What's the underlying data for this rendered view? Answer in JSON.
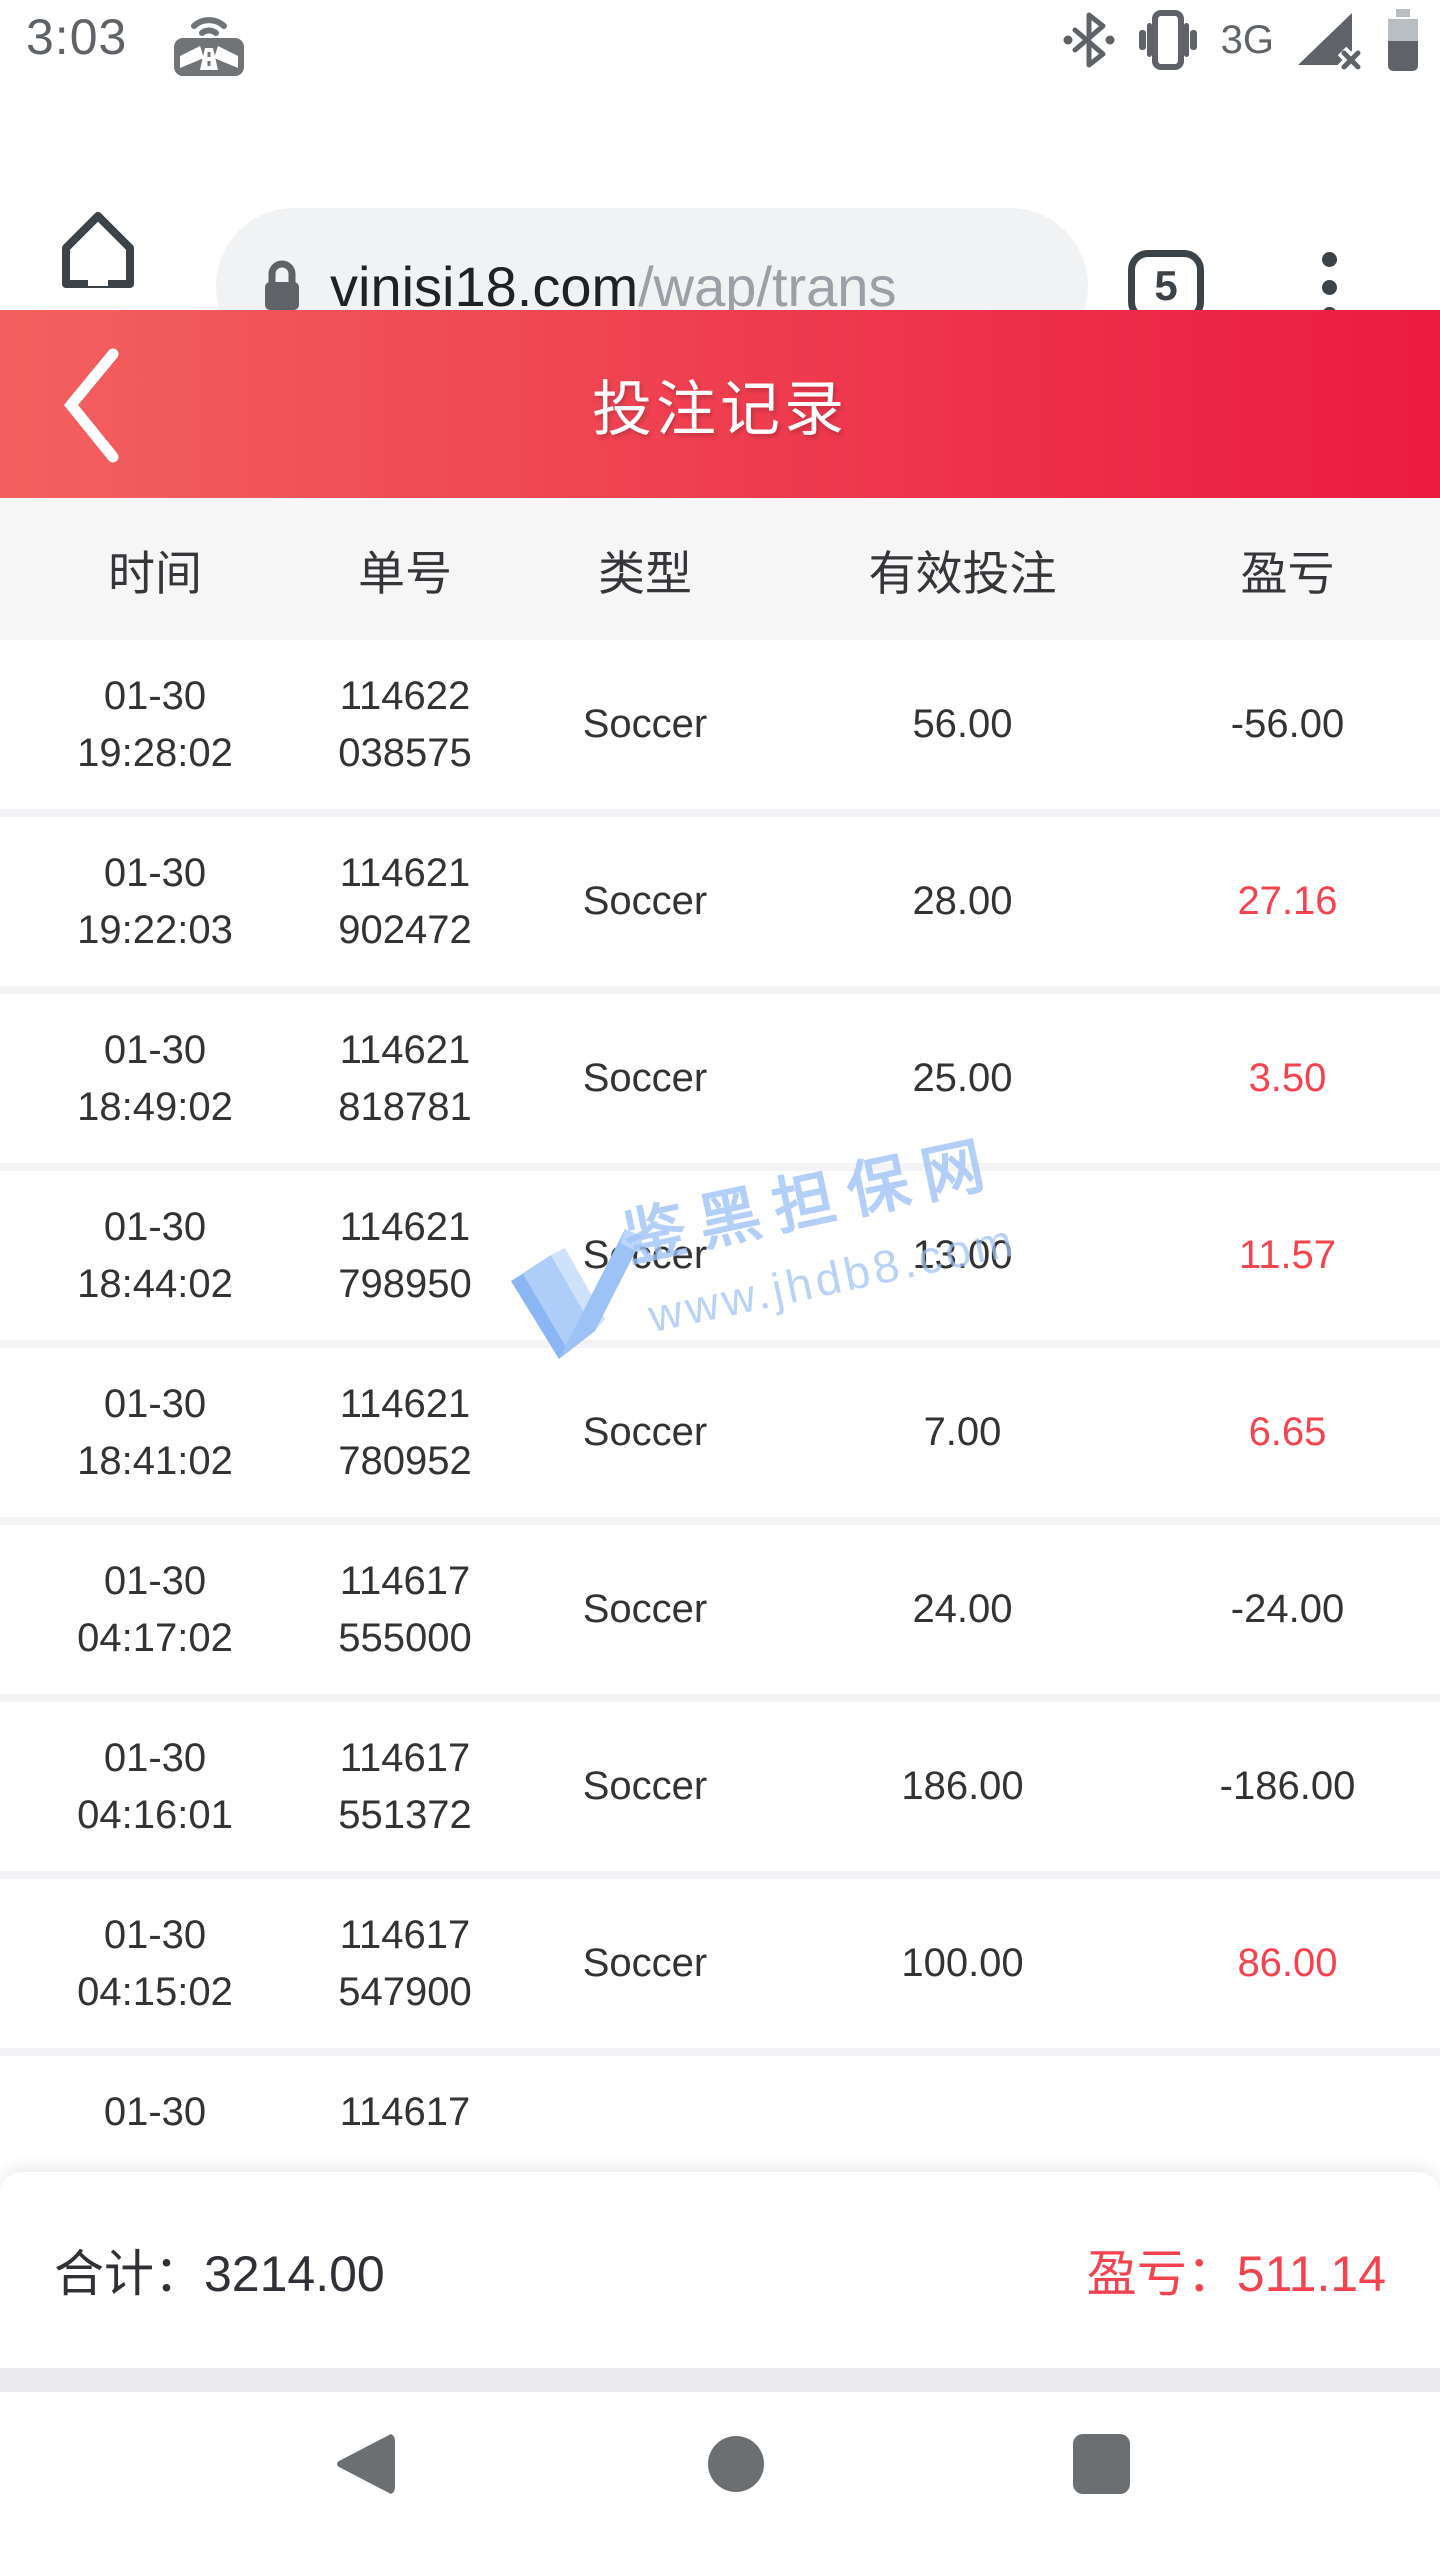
{
  "status_bar": {
    "time": "3:03",
    "network": "3G",
    "icons": [
      "cast-icon",
      "bluetooth-icon",
      "vibrate-icon",
      "signal-no-connection-icon",
      "battery-icon"
    ]
  },
  "browser_bar": {
    "url_domain": "vinisi18.com",
    "url_path": "/wap/trans",
    "tab_count": "5"
  },
  "page_header": {
    "title": "投注记录"
  },
  "bet_table": {
    "columns": [
      "时间",
      "单号",
      "类型",
      "有效投注",
      "盈亏"
    ],
    "rows": [
      {
        "date": "01-30",
        "time": "19:28:02",
        "order_hi": "114622",
        "order_lo": "038575",
        "type": "Soccer",
        "valid_bet": "56.00",
        "profit_loss": "-56.00",
        "profit_red": false
      },
      {
        "date": "01-30",
        "time": "19:22:03",
        "order_hi": "114621",
        "order_lo": "902472",
        "type": "Soccer",
        "valid_bet": "28.00",
        "profit_loss": "27.16",
        "profit_red": true
      },
      {
        "date": "01-30",
        "time": "18:49:02",
        "order_hi": "114621",
        "order_lo": "818781",
        "type": "Soccer",
        "valid_bet": "25.00",
        "profit_loss": "3.50",
        "profit_red": true
      },
      {
        "date": "01-30",
        "time": "18:44:02",
        "order_hi": "114621",
        "order_lo": "798950",
        "type": "Soccer",
        "valid_bet": "13.00",
        "profit_loss": "11.57",
        "profit_red": true
      },
      {
        "date": "01-30",
        "time": "18:41:02",
        "order_hi": "114621",
        "order_lo": "780952",
        "type": "Soccer",
        "valid_bet": "7.00",
        "profit_loss": "6.65",
        "profit_red": true
      },
      {
        "date": "01-30",
        "time": "04:17:02",
        "order_hi": "114617",
        "order_lo": "555000",
        "type": "Soccer",
        "valid_bet": "24.00",
        "profit_loss": "-24.00",
        "profit_red": false
      },
      {
        "date": "01-30",
        "time": "04:16:01",
        "order_hi": "114617",
        "order_lo": "551372",
        "type": "Soccer",
        "valid_bet": "186.00",
        "profit_loss": "-186.00",
        "profit_red": false
      },
      {
        "date": "01-30",
        "time": "04:15:02",
        "order_hi": "114617",
        "order_lo": "547900",
        "type": "Soccer",
        "valid_bet": "100.00",
        "profit_loss": "86.00",
        "profit_red": true
      }
    ],
    "partial_row": {
      "date": "01-30",
      "order_hi": "114617"
    }
  },
  "watermark": {
    "title": "鉴黑担保网",
    "url": "www.jhdb8.com"
  },
  "summary": {
    "total_label": "合计：",
    "total_value": "3214.00",
    "profit_label": "盈亏：",
    "profit_value": "511.14"
  },
  "colors": {
    "accent_red": "#f4434e",
    "header_gradient_left": "#f2615f",
    "header_gradient_right": "#eb1b40",
    "table_head_bg": "#f6f6f7",
    "watermark_blue": "#9fc2f5"
  }
}
